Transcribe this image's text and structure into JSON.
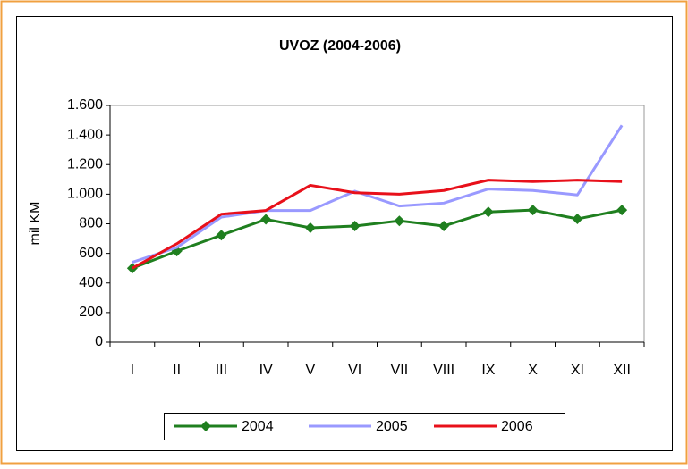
{
  "chart_data": {
    "type": "line",
    "title": "UVOZ (2004-2006)",
    "y_label": "mil KM",
    "categories": [
      "I",
      "II",
      "III",
      "IV",
      "V",
      "VI",
      "VII",
      "VIII",
      "IX",
      "X",
      "XI",
      "XII"
    ],
    "series": [
      {
        "name": "2004",
        "color": "#1f7f1f",
        "marker": "diamond",
        "values": [
          500,
          615,
          723,
          830,
          773,
          785,
          820,
          785,
          880,
          893,
          833,
          893
        ]
      },
      {
        "name": "2005",
        "color": "#9999ff",
        "marker": null,
        "values": [
          540,
          640,
          845,
          890,
          890,
          1020,
          920,
          940,
          1035,
          1025,
          995,
          1465
        ]
      },
      {
        "name": "2006",
        "color": "#e8101a",
        "marker": null,
        "values": [
          500,
          665,
          865,
          890,
          1060,
          1010,
          1000,
          1025,
          1095,
          1085,
          1095,
          1085
        ]
      }
    ],
    "ylim": [
      0,
      1600
    ],
    "yticks": [
      0,
      200,
      400,
      600,
      800,
      {
        "value": 1000,
        "label": "1.000"
      },
      {
        "value": 1200,
        "label": "1.200"
      },
      {
        "value": 1400,
        "label": "1.400"
      },
      {
        "value": 1600,
        "label": "1.600"
      }
    ],
    "grid": false,
    "legend": "bottom"
  }
}
